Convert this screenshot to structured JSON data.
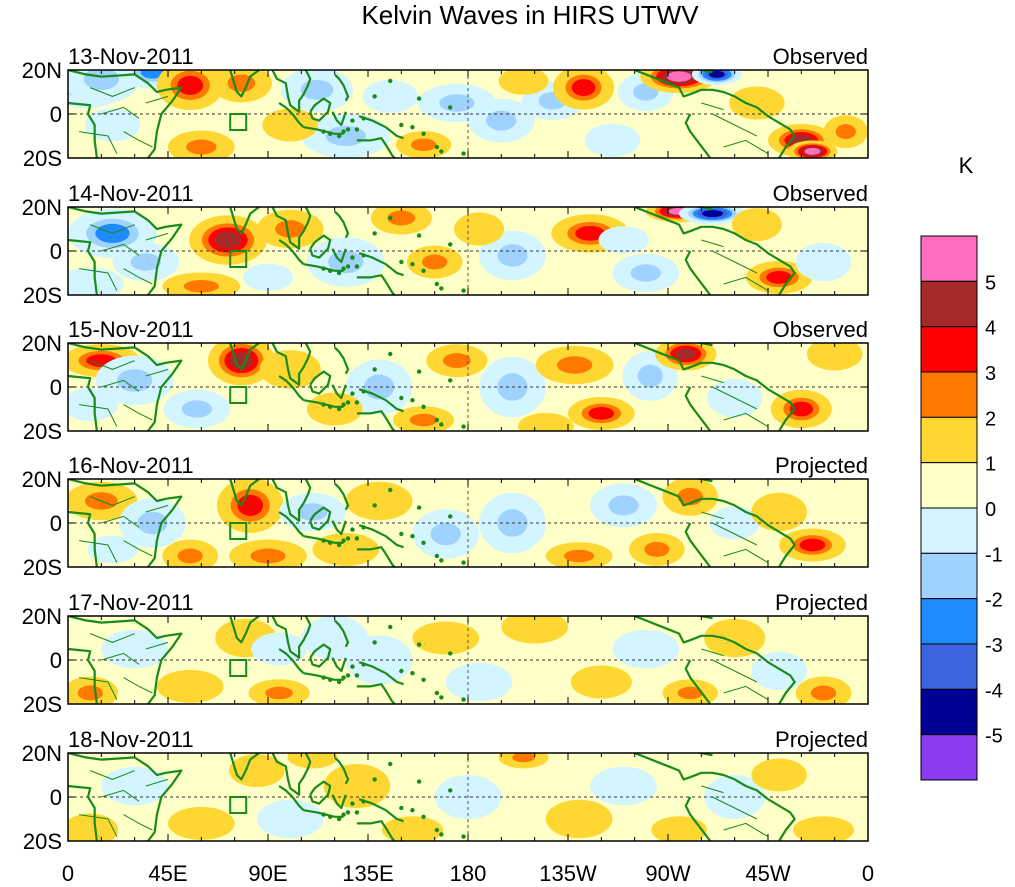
{
  "chart_data": {
    "type": "heatmap",
    "title": "Kelvin Waves in HIRS UTWV",
    "panels": [
      {
        "date": "13-Nov-2011",
        "status": "Observed"
      },
      {
        "date": "14-Nov-2011",
        "status": "Observed"
      },
      {
        "date": "15-Nov-2011",
        "status": "Observed"
      },
      {
        "date": "16-Nov-2011",
        "status": "Projected"
      },
      {
        "date": "17-Nov-2011",
        "status": "Projected"
      },
      {
        "date": "18-Nov-2011",
        "status": "Projected"
      }
    ],
    "x_ticks": [
      "0",
      "45E",
      "90E",
      "135E",
      "180",
      "135W",
      "90W",
      "45W",
      "0"
    ],
    "y_ticks": [
      "20N",
      "0",
      "20S"
    ],
    "xlim": [
      0,
      360
    ],
    "ylim": [
      -20,
      20
    ],
    "colorbar": {
      "unit": "K",
      "labels": [
        "5",
        "4",
        "3",
        "2",
        "1",
        "0",
        "-1",
        "-2",
        "-3",
        "-4",
        "-5"
      ],
      "colors": [
        "#ff6ebe",
        "#a52a2a",
        "#ff0000",
        "#ff7800",
        "#ffd732",
        "#ffffc8",
        "#d2f5ff",
        "#a0d2ff",
        "#1e8cff",
        "#3c64e1",
        "#000096",
        "#8c3cf0"
      ]
    },
    "anomalies": [
      [
        [
          8,
          14,
          16,
          9,
          -3
        ],
        [
          15,
          16,
          14,
          9,
          -2
        ],
        [
          38,
          19,
          11,
          6,
          -3
        ],
        [
          55,
          13,
          12,
          9,
          3
        ],
        [
          78,
          14,
          11,
          7,
          2
        ],
        [
          112,
          11,
          13,
          8,
          -2
        ],
        [
          125,
          -10,
          16,
          8,
          -2
        ],
        [
          160,
          -14,
          10,
          5,
          2
        ],
        [
          175,
          5,
          14,
          7,
          -2
        ],
        [
          195,
          -3,
          12,
          8,
          -2
        ],
        [
          218,
          6,
          11,
          7,
          -2
        ],
        [
          232,
          12,
          11,
          8,
          3
        ],
        [
          260,
          10,
          10,
          7,
          -2
        ],
        [
          275,
          17,
          14,
          6,
          5
        ],
        [
          292,
          18,
          9,
          4,
          -5
        ],
        [
          330,
          -12,
          12,
          6,
          4
        ],
        [
          335,
          -17,
          9,
          4,
          5
        ],
        [
          100,
          -5,
          10,
          6,
          1
        ],
        [
          145,
          8,
          10,
          6,
          -1
        ],
        [
          20,
          -5,
          10,
          6,
          -1
        ],
        [
          60,
          -15,
          12,
          6,
          2
        ],
        [
          310,
          5,
          10,
          6,
          1
        ],
        [
          350,
          -8,
          8,
          6,
          2
        ],
        [
          245,
          -12,
          10,
          6,
          -1
        ],
        [
          205,
          15,
          9,
          5,
          1
        ]
      ],
      [
        [
          20,
          8,
          16,
          9,
          -3
        ],
        [
          35,
          -5,
          12,
          7,
          -2
        ],
        [
          72,
          5,
          14,
          9,
          4
        ],
        [
          60,
          -16,
          14,
          5,
          2
        ],
        [
          100,
          10,
          12,
          7,
          2
        ],
        [
          125,
          -5,
          14,
          9,
          -2
        ],
        [
          150,
          15,
          11,
          6,
          2
        ],
        [
          165,
          -5,
          10,
          6,
          2
        ],
        [
          200,
          -2,
          12,
          9,
          -2
        ],
        [
          235,
          8,
          14,
          7,
          3
        ],
        [
          260,
          -10,
          12,
          7,
          -2
        ],
        [
          275,
          18,
          12,
          4,
          5
        ],
        [
          290,
          17,
          12,
          4,
          -5
        ],
        [
          320,
          -12,
          12,
          6,
          3
        ],
        [
          340,
          -5,
          10,
          7,
          -1
        ],
        [
          10,
          -15,
          12,
          6,
          -1
        ],
        [
          90,
          -12,
          9,
          5,
          -1
        ],
        [
          185,
          10,
          9,
          6,
          1
        ],
        [
          310,
          12,
          9,
          6,
          1
        ],
        [
          250,
          5,
          9,
          5,
          -1
        ]
      ],
      [
        [
          15,
          12,
          14,
          6,
          3
        ],
        [
          30,
          3,
          14,
          9,
          -2
        ],
        [
          78,
          12,
          12,
          9,
          4
        ],
        [
          58,
          -10,
          12,
          7,
          -2
        ],
        [
          100,
          8,
          11,
          7,
          1
        ],
        [
          140,
          0,
          12,
          10,
          -2
        ],
        [
          160,
          -15,
          11,
          5,
          2
        ],
        [
          175,
          12,
          11,
          6,
          2
        ],
        [
          200,
          0,
          12,
          11,
          -2
        ],
        [
          240,
          -12,
          12,
          6,
          3
        ],
        [
          228,
          10,
          14,
          7,
          2
        ],
        [
          262,
          5,
          10,
          9,
          -2
        ],
        [
          278,
          15,
          11,
          6,
          4
        ],
        [
          300,
          -5,
          10,
          7,
          -1
        ],
        [
          330,
          -10,
          11,
          7,
          3
        ],
        [
          345,
          15,
          10,
          6,
          1
        ],
        [
          120,
          -10,
          10,
          6,
          1
        ],
        [
          10,
          -8,
          10,
          6,
          -1
        ],
        [
          215,
          -18,
          10,
          5,
          1
        ]
      ],
      [
        [
          15,
          10,
          13,
          7,
          2
        ],
        [
          38,
          0,
          12,
          9,
          -2
        ],
        [
          55,
          -15,
          10,
          6,
          2
        ],
        [
          82,
          8,
          12,
          10,
          3
        ],
        [
          90,
          -15,
          14,
          6,
          2
        ],
        [
          110,
          5,
          12,
          7,
          -2
        ],
        [
          140,
          10,
          12,
          7,
          1
        ],
        [
          170,
          -5,
          12,
          9,
          -2
        ],
        [
          200,
          0,
          12,
          11,
          -2
        ],
        [
          230,
          -15,
          12,
          5,
          2
        ],
        [
          250,
          8,
          12,
          8,
          -2
        ],
        [
          265,
          -12,
          10,
          6,
          2
        ],
        [
          280,
          12,
          10,
          7,
          2
        ],
        [
          300,
          0,
          9,
          6,
          -1
        ],
        [
          320,
          5,
          10,
          7,
          1
        ],
        [
          335,
          -10,
          12,
          6,
          3
        ],
        [
          125,
          -12,
          12,
          6,
          1
        ],
        [
          20,
          -12,
          9,
          5,
          -1
        ]
      ],
      [
        [
          10,
          -15,
          10,
          6,
          2
        ],
        [
          30,
          5,
          12,
          7,
          -1
        ],
        [
          55,
          -12,
          12,
          6,
          1
        ],
        [
          80,
          10,
          11,
          7,
          1
        ],
        [
          95,
          -15,
          11,
          5,
          2
        ],
        [
          120,
          10,
          12,
          8,
          -1
        ],
        [
          140,
          0,
          12,
          9,
          -1
        ],
        [
          170,
          10,
          12,
          6,
          1
        ],
        [
          185,
          -10,
          12,
          7,
          -1
        ],
        [
          210,
          15,
          12,
          6,
          1
        ],
        [
          240,
          -10,
          11,
          6,
          1
        ],
        [
          260,
          5,
          12,
          7,
          -1
        ],
        [
          280,
          -15,
          10,
          5,
          2
        ],
        [
          300,
          10,
          11,
          7,
          1
        ],
        [
          320,
          -5,
          10,
          7,
          -1
        ],
        [
          340,
          -15,
          10,
          6,
          2
        ],
        [
          95,
          5,
          10,
          6,
          -1
        ]
      ],
      [
        [
          10,
          -15,
          10,
          6,
          1
        ],
        [
          30,
          5,
          12,
          7,
          -1
        ],
        [
          60,
          -12,
          12,
          6,
          1
        ],
        [
          85,
          12,
          10,
          6,
          1
        ],
        [
          100,
          -10,
          12,
          7,
          -1
        ],
        [
          130,
          5,
          12,
          8,
          1
        ],
        [
          155,
          -15,
          11,
          5,
          1
        ],
        [
          180,
          0,
          12,
          8,
          -1
        ],
        [
          205,
          18,
          9,
          4,
          2
        ],
        [
          230,
          -10,
          12,
          7,
          1
        ],
        [
          250,
          5,
          12,
          7,
          -1
        ],
        [
          275,
          -15,
          10,
          5,
          1
        ],
        [
          300,
          0,
          11,
          8,
          -1
        ],
        [
          320,
          10,
          10,
          6,
          1
        ],
        [
          340,
          -15,
          11,
          5,
          1
        ],
        [
          110,
          18,
          9,
          4,
          1
        ]
      ]
    ]
  }
}
